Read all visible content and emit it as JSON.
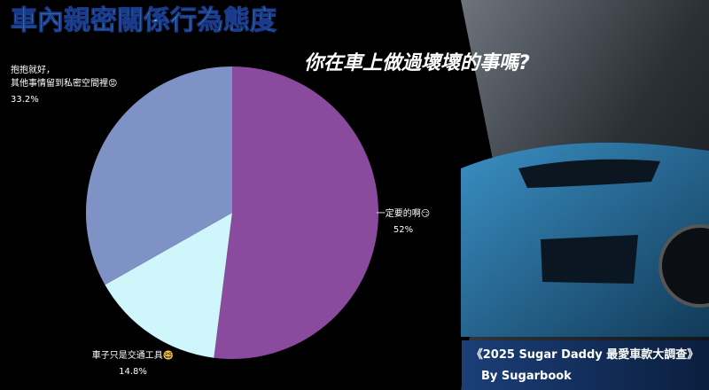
{
  "chart_data": {
    "type": "pie",
    "title": "車內親密關係行為態度",
    "subtitle": "你在車上做過壞壞的事嗎?",
    "categories": [
      "一定要的啊😏",
      "車子只是交通工具🤓",
      "抱抱就好，\n其他事情留到私密空間裡😡"
    ],
    "values": [
      52,
      14.8,
      33.2
    ],
    "value_labels": [
      "52%",
      "14.8%",
      "33.2%"
    ],
    "colors": [
      "#8a4a9e",
      "#cff6fb",
      "#7e92c6"
    ],
    "footer": [
      "《2025 Sugar Daddy 最愛車款大調查》",
      "By Sugarbook"
    ]
  }
}
